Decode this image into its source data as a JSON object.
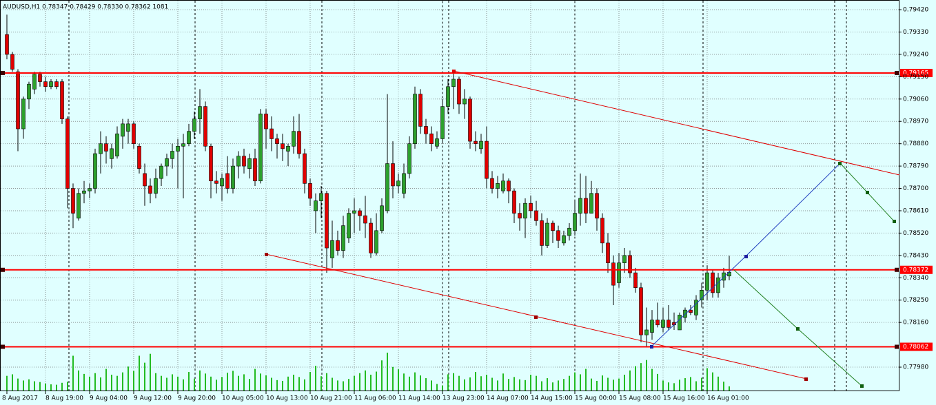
{
  "chart_data": {
    "type": "candlestick",
    "title": "AUDUSD,H1  0.78347 0.78429 0.78330 0.78362  1081",
    "bull_color": "#2ca02c",
    "bear_color": "#e00000",
    "volume_color": "#22bb22",
    "level_color": "#ff0000",
    "ylim": [
      0.77883,
      0.79459
    ],
    "yticks": [
      {
        "value": 0.7942,
        "label": "0.79420"
      },
      {
        "value": 0.7933,
        "label": "0.79330"
      },
      {
        "value": 0.7924,
        "label": "0.79240"
      },
      {
        "value": 0.7915,
        "label": "0.79150"
      },
      {
        "value": 0.7906,
        "label": "0.79060"
      },
      {
        "value": 0.7897,
        "label": "0.78970"
      },
      {
        "value": 0.7888,
        "label": "0.78880"
      },
      {
        "value": 0.7879,
        "label": "0.78790"
      },
      {
        "value": 0.787,
        "label": "0.78700"
      },
      {
        "value": 0.7861,
        "label": "0.78610"
      },
      {
        "value": 0.7852,
        "label": "0.78520"
      },
      {
        "value": 0.7843,
        "label": "0.78430"
      },
      {
        "value": 0.7834,
        "label": "0.78340"
      },
      {
        "value": 0.7825,
        "label": "0.78250"
      },
      {
        "value": 0.7816,
        "label": "0.78160"
      },
      {
        "value": 0.7798,
        "label": "0.77980"
      }
    ],
    "grid": true,
    "levels": [
      0.79165,
      0.78372,
      0.78062
    ],
    "categories": [
      "8 Aug 2017",
      null,
      null,
      null,
      null,
      null,
      null,
      "8 Aug 19:00",
      null,
      null,
      null,
      null,
      null,
      null,
      null,
      "9 Aug 04:00",
      null,
      null,
      null,
      null,
      null,
      null,
      null,
      "9 Aug 12:00",
      null,
      null,
      null,
      null,
      null,
      null,
      null,
      "9 Aug 20:00",
      null,
      null,
      null,
      null,
      null,
      null,
      null,
      "10 Aug 05:00",
      null,
      null,
      null,
      null,
      null,
      null,
      null,
      "10 Aug 13:00",
      null,
      null,
      null,
      null,
      null,
      null,
      null,
      "10 Aug 21:00",
      null,
      null,
      null,
      null,
      null,
      null,
      null,
      "11 Aug 06:00",
      null,
      null,
      null,
      null,
      null,
      null,
      null,
      "11 Aug 14:00",
      null,
      null,
      null,
      null,
      null,
      null,
      null,
      "13 Aug 23:00",
      null,
      null,
      null,
      null,
      null,
      null,
      null,
      "14 Aug 07:00",
      null,
      null,
      null,
      null,
      null,
      null,
      null,
      "14 Aug 15:00",
      null,
      null,
      null,
      null,
      null,
      null,
      null,
      "15 Aug 00:00",
      null,
      null,
      null,
      null,
      null,
      null,
      null,
      "15 Aug 08:00",
      null,
      null,
      null,
      null,
      null,
      null,
      null,
      "15 Aug 16:00",
      null,
      null,
      null,
      null,
      null,
      null,
      null,
      "16 Aug 01:00",
      null,
      null,
      null,
      null
    ],
    "ohlc": [
      [
        0.7932,
        0.794,
        0.7922,
        0.7924
      ],
      [
        0.7924,
        0.7925,
        0.7917,
        0.7918
      ],
      [
        0.7917,
        0.7918,
        0.7885,
        0.7894
      ],
      [
        0.7894,
        0.7907,
        0.789,
        0.7906
      ],
      [
        0.7906,
        0.7913,
        0.7902,
        0.7912
      ],
      [
        0.791,
        0.7917,
        0.7908,
        0.7916
      ],
      [
        0.7916,
        0.7917,
        0.7911,
        0.7913
      ],
      [
        0.7913,
        0.7915,
        0.7909,
        0.7911
      ],
      [
        0.7911,
        0.7914,
        0.791,
        0.7913
      ],
      [
        0.7913,
        0.7914,
        0.791,
        0.7911
      ],
      [
        0.7913,
        0.7914,
        0.7896,
        0.7898
      ],
      [
        0.7898,
        0.7899,
        0.7862,
        0.787
      ],
      [
        0.787,
        0.7872,
        0.7854,
        0.786
      ],
      [
        0.7858,
        0.787,
        0.7857,
        0.7868
      ],
      [
        0.7868,
        0.7873,
        0.7864,
        0.7869
      ],
      [
        0.7869,
        0.7872,
        0.7866,
        0.787
      ],
      [
        0.787,
        0.7886,
        0.7868,
        0.7884
      ],
      [
        0.7884,
        0.7893,
        0.7876,
        0.7888
      ],
      [
        0.7888,
        0.7891,
        0.788,
        0.7885
      ],
      [
        0.7882,
        0.7888,
        0.7878,
        0.7886
      ],
      [
        0.7883,
        0.7895,
        0.7882,
        0.7892
      ],
      [
        0.7891,
        0.7898,
        0.7886,
        0.7896
      ],
      [
        0.7893,
        0.7898,
        0.7888,
        0.7896
      ],
      [
        0.7896,
        0.7897,
        0.7886,
        0.7888
      ],
      [
        0.7887,
        0.7888,
        0.7876,
        0.7878
      ],
      [
        0.7876,
        0.788,
        0.7863,
        0.7871
      ],
      [
        0.7871,
        0.7874,
        0.7864,
        0.7868
      ],
      [
        0.7868,
        0.7878,
        0.7866,
        0.7874
      ],
      [
        0.7874,
        0.788,
        0.7871,
        0.7879
      ],
      [
        0.7879,
        0.7884,
        0.7875,
        0.7882
      ],
      [
        0.7882,
        0.7888,
        0.7878,
        0.7885
      ],
      [
        0.7885,
        0.789,
        0.787,
        0.7887
      ],
      [
        0.7887,
        0.7892,
        0.7866,
        0.7888
      ],
      [
        0.7888,
        0.7896,
        0.7887,
        0.7893
      ],
      [
        0.7893,
        0.7901,
        0.789,
        0.7898
      ],
      [
        0.7898,
        0.791,
        0.7892,
        0.7903
      ],
      [
        0.7903,
        0.7905,
        0.7885,
        0.7887
      ],
      [
        0.7887,
        0.7888,
        0.7866,
        0.7873
      ],
      [
        0.7873,
        0.7877,
        0.7868,
        0.7872
      ],
      [
        0.7871,
        0.7876,
        0.7865,
        0.7874
      ],
      [
        0.7876,
        0.7883,
        0.7868,
        0.787
      ],
      [
        0.787,
        0.7882,
        0.7868,
        0.7879
      ],
      [
        0.7879,
        0.7885,
        0.7874,
        0.7883
      ],
      [
        0.7883,
        0.7886,
        0.7876,
        0.7879
      ],
      [
        0.7878,
        0.7884,
        0.7874,
        0.7882
      ],
      [
        0.7882,
        0.7886,
        0.7871,
        0.7873
      ],
      [
        0.7873,
        0.7902,
        0.7872,
        0.79
      ],
      [
        0.79,
        0.7902,
        0.7886,
        0.7894
      ],
      [
        0.7894,
        0.7899,
        0.7885,
        0.789
      ],
      [
        0.789,
        0.7892,
        0.7882,
        0.7888
      ],
      [
        0.7888,
        0.7892,
        0.7881,
        0.7886
      ],
      [
        0.7885,
        0.7888,
        0.7879,
        0.7887
      ],
      [
        0.7887,
        0.7899,
        0.7884,
        0.7893
      ],
      [
        0.7893,
        0.79,
        0.7882,
        0.7884
      ],
      [
        0.7884,
        0.7886,
        0.7868,
        0.7872
      ],
      [
        0.7872,
        0.7874,
        0.7863,
        0.7866
      ],
      [
        0.7861,
        0.7868,
        0.7852,
        0.7865
      ],
      [
        0.7865,
        0.7871,
        0.7858,
        0.7868
      ],
      [
        0.7868,
        0.7869,
        0.7836,
        0.7846
      ],
      [
        0.7842,
        0.7857,
        0.7838,
        0.7849
      ],
      [
        0.7849,
        0.7853,
        0.7843,
        0.7845
      ],
      [
        0.7845,
        0.7859,
        0.7842,
        0.7855
      ],
      [
        0.785,
        0.7862,
        0.7848,
        0.786
      ],
      [
        0.786,
        0.7866,
        0.7852,
        0.7861
      ],
      [
        0.7861,
        0.7862,
        0.7853,
        0.7859
      ],
      [
        0.7859,
        0.7867,
        0.785,
        0.7856
      ],
      [
        0.7856,
        0.7858,
        0.7842,
        0.7844
      ],
      [
        0.7844,
        0.786,
        0.7843,
        0.7853
      ],
      [
        0.7853,
        0.7866,
        0.7852,
        0.7863
      ],
      [
        0.7861,
        0.7908,
        0.786,
        0.788
      ],
      [
        0.788,
        0.7889,
        0.7866,
        0.7871
      ],
      [
        0.7871,
        0.7876,
        0.7868,
        0.7873
      ],
      [
        0.7868,
        0.788,
        0.7866,
        0.7876
      ],
      [
        0.7876,
        0.7891,
        0.7874,
        0.7888
      ],
      [
        0.7888,
        0.7911,
        0.7886,
        0.7908
      ],
      [
        0.7908,
        0.791,
        0.7892,
        0.7895
      ],
      [
        0.7895,
        0.7898,
        0.7888,
        0.7892
      ],
      [
        0.7892,
        0.7895,
        0.7885,
        0.7888
      ],
      [
        0.7887,
        0.7893,
        0.7886,
        0.789
      ],
      [
        0.789,
        0.7906,
        0.7888,
        0.7903
      ],
      [
        0.7903,
        0.7914,
        0.79,
        0.7911
      ],
      [
        0.7911,
        0.7917,
        0.7902,
        0.7914
      ],
      [
        0.7914,
        0.7915,
        0.79,
        0.7904
      ],
      [
        0.7904,
        0.791,
        0.7898,
        0.7906
      ],
      [
        0.7906,
        0.7907,
        0.7886,
        0.7889
      ],
      [
        0.7889,
        0.7893,
        0.7885,
        0.7888
      ],
      [
        0.7886,
        0.7892,
        0.7884,
        0.7889
      ],
      [
        0.7889,
        0.7895,
        0.787,
        0.7874
      ],
      [
        0.7874,
        0.7877,
        0.7868,
        0.787
      ],
      [
        0.787,
        0.7875,
        0.7866,
        0.7872
      ],
      [
        0.7869,
        0.7876,
        0.7868,
        0.7873
      ],
      [
        0.7873,
        0.7874,
        0.7864,
        0.7869
      ],
      [
        0.7869,
        0.787,
        0.7856,
        0.786
      ],
      [
        0.786,
        0.7864,
        0.7853,
        0.7858
      ],
      [
        0.7858,
        0.7866,
        0.785,
        0.7864
      ],
      [
        0.7864,
        0.7867,
        0.7858,
        0.7861
      ],
      [
        0.7861,
        0.7865,
        0.7855,
        0.7857
      ],
      [
        0.7857,
        0.786,
        0.7843,
        0.7847
      ],
      [
        0.7847,
        0.7858,
        0.7846,
        0.7856
      ],
      [
        0.7856,
        0.7857,
        0.7848,
        0.7853
      ],
      [
        0.7853,
        0.7855,
        0.7846,
        0.7849
      ],
      [
        0.7848,
        0.7853,
        0.7847,
        0.7851
      ],
      [
        0.7851,
        0.7856,
        0.7849,
        0.7854
      ],
      [
        0.7853,
        0.7865,
        0.7851,
        0.786
      ],
      [
        0.786,
        0.7876,
        0.7855,
        0.7866
      ],
      [
        0.7866,
        0.7875,
        0.7856,
        0.786
      ],
      [
        0.786,
        0.7873,
        0.786,
        0.7868
      ],
      [
        0.7868,
        0.787,
        0.7853,
        0.7858
      ],
      [
        0.7858,
        0.786,
        0.7844,
        0.7848
      ],
      [
        0.7848,
        0.7852,
        0.7836,
        0.784
      ],
      [
        0.784,
        0.7843,
        0.7823,
        0.7831
      ],
      [
        0.7832,
        0.7844,
        0.783,
        0.784
      ],
      [
        0.784,
        0.7846,
        0.7836,
        0.7843
      ],
      [
        0.7843,
        0.7845,
        0.7834,
        0.7836
      ],
      [
        0.7836,
        0.7838,
        0.7828,
        0.783
      ],
      [
        0.783,
        0.7832,
        0.7808,
        0.7811
      ],
      [
        0.7811,
        0.7822,
        0.7806,
        0.7813
      ],
      [
        0.7812,
        0.7821,
        0.7809,
        0.7817
      ],
      [
        0.7817,
        0.7824,
        0.7814,
        0.7815
      ],
      [
        0.7814,
        0.7822,
        0.7812,
        0.7817
      ],
      [
        0.7817,
        0.7823,
        0.7813,
        0.7814
      ],
      [
        0.7816,
        0.782,
        0.7813,
        0.7815
      ],
      [
        0.7813,
        0.782,
        0.7813,
        0.7819
      ],
      [
        0.7818,
        0.7822,
        0.7816,
        0.7821
      ],
      [
        0.7821,
        0.7823,
        0.7819,
        0.782
      ],
      [
        0.7819,
        0.7827,
        0.7817,
        0.7825
      ],
      [
        0.7825,
        0.7832,
        0.7822,
        0.7829
      ],
      [
        0.7829,
        0.7839,
        0.7825,
        0.7836
      ],
      [
        0.7836,
        0.7837,
        0.7826,
        0.7828
      ],
      [
        0.7828,
        0.7836,
        0.7826,
        0.7834
      ],
      [
        0.7833,
        0.7838,
        0.783,
        0.7836
      ],
      [
        0.78347,
        0.78429,
        0.7833,
        0.78362
      ]
    ],
    "volumes": [
      3800,
      4200,
      3100,
      2600,
      2900,
      2400,
      2200,
      1800,
      1600,
      1500,
      2000,
      2300,
      9000,
      5200,
      4300,
      3600,
      4500,
      3400,
      5600,
      4100,
      3800,
      4700,
      6200,
      5100,
      9000,
      7200,
      9500,
      4500,
      3800,
      3300,
      4200,
      3600,
      2900,
      4800,
      3100,
      5200,
      4400,
      3600,
      2800,
      3500,
      4600,
      5100,
      3800,
      4200,
      3000,
      5600,
      4400,
      3900,
      3300,
      2700,
      2500,
      3600,
      4100,
      3500,
      2900,
      4800,
      6400,
      3700,
      4500,
      3300,
      2600,
      2400,
      3000,
      3800,
      4500,
      5200,
      4100,
      4900,
      7800,
      9800,
      6100,
      5500,
      4400,
      3600,
      4700,
      3900,
      3200,
      2600,
      1700,
      1300,
      4200,
      4500,
      3800,
      2900,
      3400,
      4800,
      3700,
      4100,
      3300,
      2600,
      4400,
      3000,
      3500,
      2900,
      2700,
      4100,
      3800,
      2400,
      3200,
      2100,
      2600,
      3000,
      3800,
      4700,
      4200,
      5600,
      3100,
      2500,
      3900,
      3300,
      2800,
      3100,
      4100,
      5200,
      6300,
      7100,
      7900,
      5600,
      4300,
      2600,
      2100,
      1900,
      2800,
      3200,
      3500,
      2400,
      3300,
      5800,
      4700,
      3600,
      2300,
      1081
    ]
  }
}
